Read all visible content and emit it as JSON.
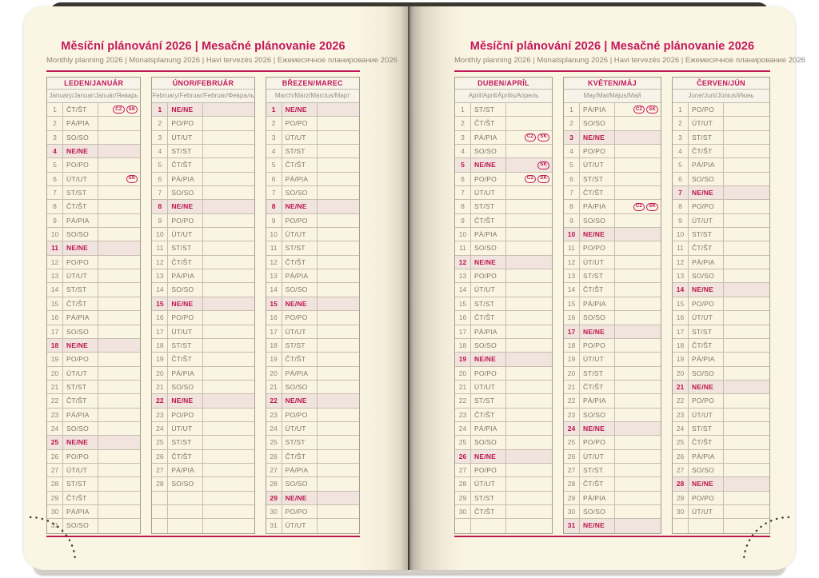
{
  "header": {
    "title": "Měsíční plánování 2026 | Mesačné plánovanie 2026",
    "subtitle": "Monthly planning 2026 | Monatsplanung 2026 | Havi tervezés 2026 | Ежемесячное планирование 2026"
  },
  "colors": {
    "accent": "#c2185b",
    "sunday_bg": "#f1e3dd",
    "page_bg": "#fbf5e4",
    "grid_border": "#c6beae"
  },
  "sunday_label": "NE/NE",
  "rows_per_table": 31,
  "months": [
    {
      "name": "LEDEN/JANUÁR",
      "subtitle": "January/Januar/Január/Январь",
      "days": [
        {
          "d": 1,
          "w": "ČT/ŠT",
          "b": [
            "CZ",
            "SK"
          ]
        },
        {
          "d": 2,
          "w": "PÁ/PIA"
        },
        {
          "d": 3,
          "w": "SO/SO"
        },
        {
          "d": 4,
          "w": "NE/NE"
        },
        {
          "d": 5,
          "w": "PO/PO"
        },
        {
          "d": 6,
          "w": "ÚT/UT",
          "b": [
            "SK"
          ]
        },
        {
          "d": 7,
          "w": "ST/ST"
        },
        {
          "d": 8,
          "w": "ČT/ŠT"
        },
        {
          "d": 9,
          "w": "PÁ/PIA"
        },
        {
          "d": 10,
          "w": "SO/SO"
        },
        {
          "d": 11,
          "w": "NE/NE"
        },
        {
          "d": 12,
          "w": "PO/PO"
        },
        {
          "d": 13,
          "w": "ÚT/UT"
        },
        {
          "d": 14,
          "w": "ST/ST"
        },
        {
          "d": 15,
          "w": "ČT/ŠT"
        },
        {
          "d": 16,
          "w": "PÁ/PIA"
        },
        {
          "d": 17,
          "w": "SO/SO"
        },
        {
          "d": 18,
          "w": "NE/NE"
        },
        {
          "d": 19,
          "w": "PO/PO"
        },
        {
          "d": 20,
          "w": "ÚT/UT"
        },
        {
          "d": 21,
          "w": "ST/ST"
        },
        {
          "d": 22,
          "w": "ČT/ŠT"
        },
        {
          "d": 23,
          "w": "PÁ/PIA"
        },
        {
          "d": 24,
          "w": "SO/SO"
        },
        {
          "d": 25,
          "w": "NE/NE"
        },
        {
          "d": 26,
          "w": "PO/PO"
        },
        {
          "d": 27,
          "w": "ÚT/UT"
        },
        {
          "d": 28,
          "w": "ST/ST"
        },
        {
          "d": 29,
          "w": "ČT/ŠT"
        },
        {
          "d": 30,
          "w": "PÁ/PIA"
        },
        {
          "d": 31,
          "w": "SO/SO"
        }
      ]
    },
    {
      "name": "ÚNOR/FEBRUÁR",
      "subtitle": "February/Februar/Február/Февраль",
      "days": [
        {
          "d": 1,
          "w": "NE/NE"
        },
        {
          "d": 2,
          "w": "PO/PO"
        },
        {
          "d": 3,
          "w": "ÚT/UT"
        },
        {
          "d": 4,
          "w": "ST/ST"
        },
        {
          "d": 5,
          "w": "ČT/ŠT"
        },
        {
          "d": 6,
          "w": "PÁ/PIA"
        },
        {
          "d": 7,
          "w": "SO/SO"
        },
        {
          "d": 8,
          "w": "NE/NE"
        },
        {
          "d": 9,
          "w": "PO/PO"
        },
        {
          "d": 10,
          "w": "ÚT/UT"
        },
        {
          "d": 11,
          "w": "ST/ST"
        },
        {
          "d": 12,
          "w": "ČT/ŠT"
        },
        {
          "d": 13,
          "w": "PÁ/PIA"
        },
        {
          "d": 14,
          "w": "SO/SO"
        },
        {
          "d": 15,
          "w": "NE/NE"
        },
        {
          "d": 16,
          "w": "PO/PO"
        },
        {
          "d": 17,
          "w": "ÚT/UT"
        },
        {
          "d": 18,
          "w": "ST/ST"
        },
        {
          "d": 19,
          "w": "ČT/ŠT"
        },
        {
          "d": 20,
          "w": "PÁ/PIA"
        },
        {
          "d": 21,
          "w": "SO/SO"
        },
        {
          "d": 22,
          "w": "NE/NE"
        },
        {
          "d": 23,
          "w": "PO/PO"
        },
        {
          "d": 24,
          "w": "ÚT/UT"
        },
        {
          "d": 25,
          "w": "ST/ST"
        },
        {
          "d": 26,
          "w": "ČT/ŠT"
        },
        {
          "d": 27,
          "w": "PÁ/PIA"
        },
        {
          "d": 28,
          "w": "SO/SO"
        }
      ]
    },
    {
      "name": "BŘEZEN/MAREC",
      "subtitle": "March/März/Március/Март",
      "days": [
        {
          "d": 1,
          "w": "NE/NE"
        },
        {
          "d": 2,
          "w": "PO/PO"
        },
        {
          "d": 3,
          "w": "ÚT/UT"
        },
        {
          "d": 4,
          "w": "ST/ST"
        },
        {
          "d": 5,
          "w": "ČT/ŠT"
        },
        {
          "d": 6,
          "w": "PÁ/PIA"
        },
        {
          "d": 7,
          "w": "SO/SO"
        },
        {
          "d": 8,
          "w": "NE/NE"
        },
        {
          "d": 9,
          "w": "PO/PO"
        },
        {
          "d": 10,
          "w": "ÚT/UT"
        },
        {
          "d": 11,
          "w": "ST/ST"
        },
        {
          "d": 12,
          "w": "ČT/ŠT"
        },
        {
          "d": 13,
          "w": "PÁ/PIA"
        },
        {
          "d": 14,
          "w": "SO/SO"
        },
        {
          "d": 15,
          "w": "NE/NE"
        },
        {
          "d": 16,
          "w": "PO/PO"
        },
        {
          "d": 17,
          "w": "ÚT/UT"
        },
        {
          "d": 18,
          "w": "ST/ST"
        },
        {
          "d": 19,
          "w": "ČT/ŠT"
        },
        {
          "d": 20,
          "w": "PÁ/PIA"
        },
        {
          "d": 21,
          "w": "SO/SO"
        },
        {
          "d": 22,
          "w": "NE/NE"
        },
        {
          "d": 23,
          "w": "PO/PO"
        },
        {
          "d": 24,
          "w": "ÚT/UT"
        },
        {
          "d": 25,
          "w": "ST/ST"
        },
        {
          "d": 26,
          "w": "ČT/ŠT"
        },
        {
          "d": 27,
          "w": "PÁ/PIA"
        },
        {
          "d": 28,
          "w": "SO/SO"
        },
        {
          "d": 29,
          "w": "NE/NE"
        },
        {
          "d": 30,
          "w": "PO/PO"
        },
        {
          "d": 31,
          "w": "ÚT/UT"
        }
      ]
    },
    {
      "name": "DUBEN/APRÍL",
      "subtitle": "April/April/Április/Апрель",
      "days": [
        {
          "d": 1,
          "w": "ST/ST"
        },
        {
          "d": 2,
          "w": "ČT/ŠT"
        },
        {
          "d": 3,
          "w": "PÁ/PIA",
          "b": [
            "CZ",
            "SK"
          ]
        },
        {
          "d": 4,
          "w": "SO/SO"
        },
        {
          "d": 5,
          "w": "NE/NE",
          "b": [
            "SK"
          ]
        },
        {
          "d": 6,
          "w": "PO/PO",
          "b": [
            "CZ",
            "SK"
          ]
        },
        {
          "d": 7,
          "w": "ÚT/UT"
        },
        {
          "d": 8,
          "w": "ST/ST"
        },
        {
          "d": 9,
          "w": "ČT/ŠT"
        },
        {
          "d": 10,
          "w": "PÁ/PIA"
        },
        {
          "d": 11,
          "w": "SO/SO"
        },
        {
          "d": 12,
          "w": "NE/NE"
        },
        {
          "d": 13,
          "w": "PO/PO"
        },
        {
          "d": 14,
          "w": "ÚT/UT"
        },
        {
          "d": 15,
          "w": "ST/ST"
        },
        {
          "d": 16,
          "w": "ČT/ŠT"
        },
        {
          "d": 17,
          "w": "PÁ/PIA"
        },
        {
          "d": 18,
          "w": "SO/SO"
        },
        {
          "d": 19,
          "w": "NE/NE"
        },
        {
          "d": 20,
          "w": "PO/PO"
        },
        {
          "d": 21,
          "w": "ÚT/UT"
        },
        {
          "d": 22,
          "w": "ST/ST"
        },
        {
          "d": 23,
          "w": "ČT/ŠT"
        },
        {
          "d": 24,
          "w": "PÁ/PIA"
        },
        {
          "d": 25,
          "w": "SO/SO"
        },
        {
          "d": 26,
          "w": "NE/NE"
        },
        {
          "d": 27,
          "w": "PO/PO"
        },
        {
          "d": 28,
          "w": "ÚT/UT"
        },
        {
          "d": 29,
          "w": "ST/ST"
        },
        {
          "d": 30,
          "w": "ČT/ŠT"
        }
      ]
    },
    {
      "name": "KVĚTEN/MÁJ",
      "subtitle": "May/Mai/Május/Май",
      "days": [
        {
          "d": 1,
          "w": "PÁ/PIA",
          "b": [
            "CZ",
            "SK"
          ]
        },
        {
          "d": 2,
          "w": "SO/SO"
        },
        {
          "d": 3,
          "w": "NE/NE"
        },
        {
          "d": 4,
          "w": "PO/PO"
        },
        {
          "d": 5,
          "w": "ÚT/UT"
        },
        {
          "d": 6,
          "w": "ST/ST"
        },
        {
          "d": 7,
          "w": "ČT/ŠT"
        },
        {
          "d": 8,
          "w": "PÁ/PIA",
          "b": [
            "CZ",
            "SK"
          ]
        },
        {
          "d": 9,
          "w": "SO/SO"
        },
        {
          "d": 10,
          "w": "NE/NE"
        },
        {
          "d": 11,
          "w": "PO/PO"
        },
        {
          "d": 12,
          "w": "ÚT/UT"
        },
        {
          "d": 13,
          "w": "ST/ST"
        },
        {
          "d": 14,
          "w": "ČT/ŠT"
        },
        {
          "d": 15,
          "w": "PÁ/PIA"
        },
        {
          "d": 16,
          "w": "SO/SO"
        },
        {
          "d": 17,
          "w": "NE/NE"
        },
        {
          "d": 18,
          "w": "PO/PO"
        },
        {
          "d": 19,
          "w": "ÚT/UT"
        },
        {
          "d": 20,
          "w": "ST/ST"
        },
        {
          "d": 21,
          "w": "ČT/ŠT"
        },
        {
          "d": 22,
          "w": "PÁ/PIA"
        },
        {
          "d": 23,
          "w": "SO/SO"
        },
        {
          "d": 24,
          "w": "NE/NE"
        },
        {
          "d": 25,
          "w": "PO/PO"
        },
        {
          "d": 26,
          "w": "ÚT/UT"
        },
        {
          "d": 27,
          "w": "ST/ST"
        },
        {
          "d": 28,
          "w": "ČT/ŠT"
        },
        {
          "d": 29,
          "w": "PÁ/PIA"
        },
        {
          "d": 30,
          "w": "SO/SO"
        },
        {
          "d": 31,
          "w": "NE/NE"
        }
      ]
    },
    {
      "name": "ČERVEN/JÚN",
      "subtitle": "June/Juni/Június/Июнь",
      "days": [
        {
          "d": 1,
          "w": "PO/PO"
        },
        {
          "d": 2,
          "w": "ÚT/UT"
        },
        {
          "d": 3,
          "w": "ST/ST"
        },
        {
          "d": 4,
          "w": "ČT/ŠT"
        },
        {
          "d": 5,
          "w": "PÁ/PIA"
        },
        {
          "d": 6,
          "w": "SO/SO"
        },
        {
          "d": 7,
          "w": "NE/NE"
        },
        {
          "d": 8,
          "w": "PO/PO"
        },
        {
          "d": 9,
          "w": "ÚT/UT"
        },
        {
          "d": 10,
          "w": "ST/ST"
        },
        {
          "d": 11,
          "w": "ČT/ŠT"
        },
        {
          "d": 12,
          "w": "PÁ/PIA"
        },
        {
          "d": 13,
          "w": "SO/SO"
        },
        {
          "d": 14,
          "w": "NE/NE"
        },
        {
          "d": 15,
          "w": "PO/PO"
        },
        {
          "d": 16,
          "w": "ÚT/UT"
        },
        {
          "d": 17,
          "w": "ST/ST"
        },
        {
          "d": 18,
          "w": "ČT/ŠT"
        },
        {
          "d": 19,
          "w": "PÁ/PIA"
        },
        {
          "d": 20,
          "w": "SO/SO"
        },
        {
          "d": 21,
          "w": "NE/NE"
        },
        {
          "d": 22,
          "w": "PO/PO"
        },
        {
          "d": 23,
          "w": "ÚT/UT"
        },
        {
          "d": 24,
          "w": "ST/ST"
        },
        {
          "d": 25,
          "w": "ČT/ŠT"
        },
        {
          "d": 26,
          "w": "PÁ/PIA"
        },
        {
          "d": 27,
          "w": "SO/SO"
        },
        {
          "d": 28,
          "w": "NE/NE"
        },
        {
          "d": 29,
          "w": "PO/PO"
        },
        {
          "d": 30,
          "w": "ÚT/UT"
        }
      ]
    }
  ]
}
